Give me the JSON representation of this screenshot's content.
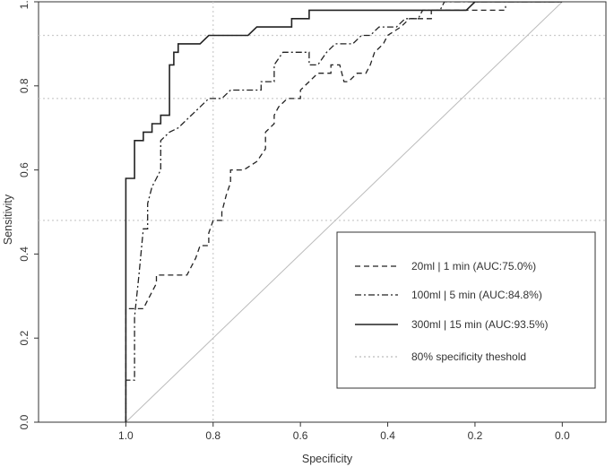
{
  "chart_data": {
    "type": "line",
    "title": "",
    "xlabel": "Specificity",
    "ylabel": "Sensitivity",
    "x_reversed": true,
    "xlim": [
      1.2,
      -0.1
    ],
    "ylim": [
      0.0,
      1.0
    ],
    "x_ticks": [
      1.0,
      0.8,
      0.6,
      0.4,
      0.2,
      0.0
    ],
    "x_tick_labels": [
      "1.0",
      "0.8",
      "0.6",
      "0.4",
      "0.2",
      "0.0"
    ],
    "y_ticks": [
      0.0,
      0.2,
      0.4,
      0.6,
      0.8,
      1.0
    ],
    "y_tick_labels": [
      "0.0",
      "0.2",
      "0.4",
      "0.6",
      "0.8",
      "1.0"
    ],
    "reference_line": {
      "name": "chance diagonal",
      "from": [
        1.05,
        -0.05
      ],
      "to": [
        -0.05,
        1.05
      ],
      "color": "#bbbbbb"
    },
    "threshold_line": {
      "specificity": 0.8,
      "sensitivity_levels": [
        0.92,
        0.77,
        0.48
      ],
      "color": "#cccccc"
    },
    "series": [
      {
        "name": "20ml | 1 min (AUC:75.0%)",
        "label": "20ml | 1 min (AUC:75.0%)",
        "style": "dashed",
        "auc": 75.0,
        "points": [
          [
            1.0,
            0.0
          ],
          [
            1.0,
            0.27
          ],
          [
            0.98,
            0.27
          ],
          [
            0.96,
            0.27
          ],
          [
            0.95,
            0.29
          ],
          [
            0.94,
            0.31
          ],
          [
            0.93,
            0.33
          ],
          [
            0.93,
            0.35
          ],
          [
            0.91,
            0.35
          ],
          [
            0.9,
            0.35
          ],
          [
            0.88,
            0.35
          ],
          [
            0.87,
            0.35
          ],
          [
            0.86,
            0.35
          ],
          [
            0.85,
            0.37
          ],
          [
            0.84,
            0.39
          ],
          [
            0.83,
            0.42
          ],
          [
            0.81,
            0.42
          ],
          [
            0.81,
            0.45
          ],
          [
            0.8,
            0.48
          ],
          [
            0.78,
            0.48
          ],
          [
            0.78,
            0.5
          ],
          [
            0.77,
            0.54
          ],
          [
            0.76,
            0.57
          ],
          [
            0.76,
            0.6
          ],
          [
            0.73,
            0.6
          ],
          [
            0.7,
            0.62
          ],
          [
            0.68,
            0.65
          ],
          [
            0.68,
            0.69
          ],
          [
            0.66,
            0.71
          ],
          [
            0.66,
            0.73
          ],
          [
            0.65,
            0.75
          ],
          [
            0.63,
            0.77
          ],
          [
            0.6,
            0.77
          ],
          [
            0.6,
            0.79
          ],
          [
            0.58,
            0.81
          ],
          [
            0.56,
            0.83
          ],
          [
            0.53,
            0.83
          ],
          [
            0.53,
            0.85
          ],
          [
            0.51,
            0.85
          ],
          [
            0.5,
            0.81
          ],
          [
            0.49,
            0.81
          ],
          [
            0.47,
            0.83
          ],
          [
            0.45,
            0.83
          ],
          [
            0.44,
            0.85
          ],
          [
            0.43,
            0.88
          ],
          [
            0.41,
            0.9
          ],
          [
            0.4,
            0.92
          ],
          [
            0.37,
            0.94
          ],
          [
            0.35,
            0.96
          ],
          [
            0.3,
            0.96
          ],
          [
            0.3,
            0.98
          ],
          [
            0.25,
            0.98
          ],
          [
            0.2,
            0.98
          ],
          [
            0.13,
            0.98
          ],
          [
            0.13,
            0.99
          ]
        ]
      },
      {
        "name": "100ml | 5 min (AUC:84.8%)",
        "label": "100ml | 5 min (AUC:84.8%)",
        "style": "dashdot",
        "auc": 84.8,
        "points": [
          [
            1.0,
            0.0
          ],
          [
            1.0,
            0.1
          ],
          [
            0.98,
            0.1
          ],
          [
            0.98,
            0.25
          ],
          [
            0.97,
            0.35
          ],
          [
            0.96,
            0.46
          ],
          [
            0.95,
            0.46
          ],
          [
            0.95,
            0.52
          ],
          [
            0.94,
            0.56
          ],
          [
            0.93,
            0.58
          ],
          [
            0.92,
            0.6
          ],
          [
            0.92,
            0.67
          ],
          [
            0.9,
            0.69
          ],
          [
            0.88,
            0.7
          ],
          [
            0.87,
            0.71
          ],
          [
            0.85,
            0.73
          ],
          [
            0.83,
            0.75
          ],
          [
            0.81,
            0.77
          ],
          [
            0.78,
            0.77
          ],
          [
            0.76,
            0.79
          ],
          [
            0.73,
            0.79
          ],
          [
            0.69,
            0.79
          ],
          [
            0.69,
            0.81
          ],
          [
            0.66,
            0.81
          ],
          [
            0.66,
            0.85
          ],
          [
            0.64,
            0.88
          ],
          [
            0.6,
            0.88
          ],
          [
            0.58,
            0.88
          ],
          [
            0.58,
            0.85
          ],
          [
            0.56,
            0.85
          ],
          [
            0.54,
            0.88
          ],
          [
            0.52,
            0.9
          ],
          [
            0.48,
            0.9
          ],
          [
            0.46,
            0.92
          ],
          [
            0.44,
            0.92
          ],
          [
            0.42,
            0.94
          ],
          [
            0.38,
            0.94
          ],
          [
            0.36,
            0.96
          ],
          [
            0.33,
            0.96
          ],
          [
            0.32,
            0.98
          ],
          [
            0.28,
            0.98
          ],
          [
            0.27,
            1.0
          ],
          [
            0.2,
            1.0
          ],
          [
            0.0,
            1.0
          ]
        ]
      },
      {
        "name": "300ml | 15 min (AUC:93.5%)",
        "label": "300ml | 15 min (AUC:93.5%)",
        "style": "solid",
        "auc": 93.5,
        "points": [
          [
            1.0,
            0.0
          ],
          [
            1.0,
            0.58
          ],
          [
            0.98,
            0.58
          ],
          [
            0.98,
            0.67
          ],
          [
            0.96,
            0.67
          ],
          [
            0.96,
            0.69
          ],
          [
            0.94,
            0.69
          ],
          [
            0.94,
            0.71
          ],
          [
            0.92,
            0.71
          ],
          [
            0.92,
            0.73
          ],
          [
            0.9,
            0.73
          ],
          [
            0.9,
            0.79
          ],
          [
            0.9,
            0.85
          ],
          [
            0.89,
            0.85
          ],
          [
            0.89,
            0.88
          ],
          [
            0.88,
            0.88
          ],
          [
            0.88,
            0.9
          ],
          [
            0.83,
            0.9
          ],
          [
            0.81,
            0.92
          ],
          [
            0.78,
            0.92
          ],
          [
            0.76,
            0.92
          ],
          [
            0.72,
            0.92
          ],
          [
            0.7,
            0.94
          ],
          [
            0.66,
            0.94
          ],
          [
            0.62,
            0.94
          ],
          [
            0.62,
            0.96
          ],
          [
            0.58,
            0.96
          ],
          [
            0.58,
            0.98
          ],
          [
            0.3,
            0.98
          ],
          [
            0.22,
            0.98
          ],
          [
            0.2,
            1.0
          ],
          [
            0.0,
            1.0
          ]
        ]
      }
    ],
    "legend": {
      "position": "bottom-right",
      "items": [
        {
          "label": "20ml | 1 min (AUC:75.0%)",
          "style": "dashed"
        },
        {
          "label": "100ml | 5 min (AUC:84.8%)",
          "style": "dashdot"
        },
        {
          "label": "300ml | 15 min (AUC:93.5%)",
          "style": "solid"
        },
        {
          "label": "80% specificity theshold",
          "style": "dotted"
        }
      ]
    }
  }
}
